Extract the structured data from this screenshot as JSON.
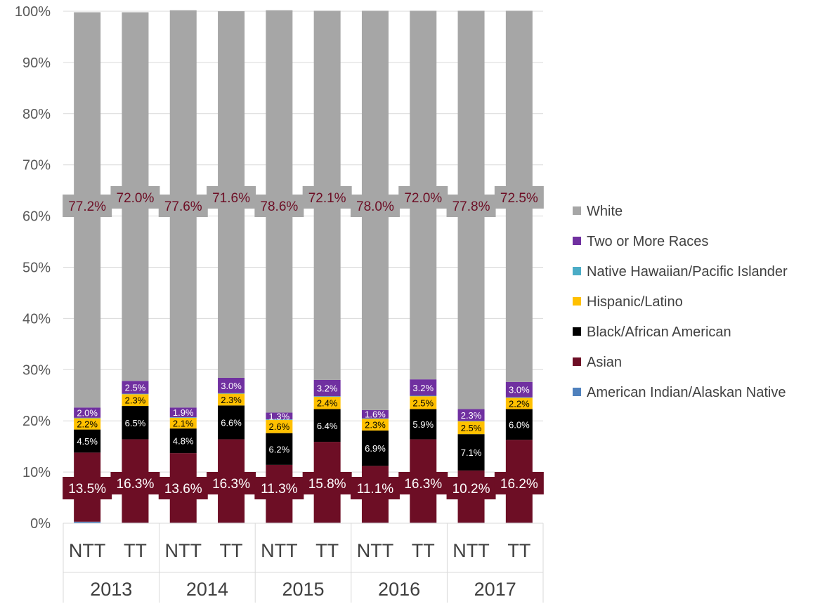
{
  "chart_data": {
    "type": "bar",
    "stacked": true,
    "percent": true,
    "y_ticks": [
      "0%",
      "10%",
      "20%",
      "30%",
      "40%",
      "50%",
      "60%",
      "70%",
      "80%",
      "90%",
      "100%"
    ],
    "ylim": [
      0,
      100
    ],
    "grid": true,
    "legend_position": "right",
    "categories": [
      "NTT",
      "TT",
      "NTT",
      "TT",
      "NTT",
      "TT",
      "NTT",
      "TT",
      "NTT",
      "TT"
    ],
    "groups": [
      "2013",
      "2014",
      "2015",
      "2016",
      "2017"
    ],
    "series": [
      {
        "name": "American Indian/Alaskan Native",
        "color": "#4f81bd",
        "values": [
          0.3,
          0.1,
          0.1,
          0.1,
          0.1,
          0.1,
          0.1,
          0.1,
          0.1,
          0.1
        ],
        "labels": [
          "",
          "",
          "",
          "",
          "",
          "",
          "",
          "",
          "",
          ""
        ]
      },
      {
        "name": "Asian",
        "color": "#6d0e25",
        "values": [
          13.5,
          16.3,
          13.6,
          16.3,
          11.3,
          15.8,
          11.1,
          16.3,
          10.2,
          16.2
        ],
        "labels": [
          "13.5%",
          "16.3%",
          "13.6%",
          "16.3%",
          "11.3%",
          "15.8%",
          "11.1%",
          "16.3%",
          "10.2%",
          "16.2%"
        ]
      },
      {
        "name": "Black/African American",
        "color": "#000000",
        "values": [
          4.5,
          6.5,
          4.8,
          6.6,
          6.2,
          6.4,
          6.9,
          5.9,
          7.1,
          6.0
        ],
        "labels": [
          "4.5%",
          "6.5%",
          "4.8%",
          "6.6%",
          "6.2%",
          "6.4%",
          "6.9%",
          "5.9%",
          "7.1%",
          "6.0%"
        ]
      },
      {
        "name": "Hispanic/Latino",
        "color": "#ffc000",
        "values": [
          2.2,
          2.3,
          2.1,
          2.3,
          2.6,
          2.4,
          2.3,
          2.5,
          2.5,
          2.2
        ],
        "labels": [
          "2.2%",
          "2.3%",
          "2.1%",
          "2.3%",
          "2.6%",
          "2.4%",
          "2.3%",
          "2.5%",
          "2.5%",
          "2.2%"
        ]
      },
      {
        "name": "Native Hawaiian/Pacific Islander",
        "color": "#4bacc6",
        "values": [
          0.1,
          0.1,
          0.1,
          0.1,
          0.1,
          0.1,
          0.1,
          0.1,
          0.1,
          0.1
        ],
        "labels": [
          "",
          "",
          "",
          "",
          "",
          "",
          "",
          "",
          "",
          ""
        ]
      },
      {
        "name": "Two or More Races",
        "color": "#7030a0",
        "values": [
          2.0,
          2.5,
          1.9,
          3.0,
          1.3,
          3.2,
          1.6,
          3.2,
          2.3,
          3.0
        ],
        "labels": [
          "2.0%",
          "2.5%",
          "1.9%",
          "3.0%",
          "1.3%",
          "3.2%",
          "1.6%",
          "3.2%",
          "2.3%",
          "3.0%"
        ]
      },
      {
        "name": "White",
        "color": "#a6a6a6",
        "values": [
          77.2,
          72.0,
          77.6,
          71.6,
          78.6,
          72.1,
          78.0,
          72.0,
          77.8,
          72.5
        ],
        "labels": [
          "77.2%",
          "72.0%",
          "77.6%",
          "71.6%",
          "78.6%",
          "72.1%",
          "78.0%",
          "72.0%",
          "77.8%",
          "72.5%"
        ]
      }
    ],
    "legend_order": [
      "White",
      "Two or More Races",
      "Native Hawaiian/Pacific Islander",
      "Hispanic/Latino",
      "Black/African American",
      "Asian",
      "American Indian/Alaskan Native"
    ]
  }
}
